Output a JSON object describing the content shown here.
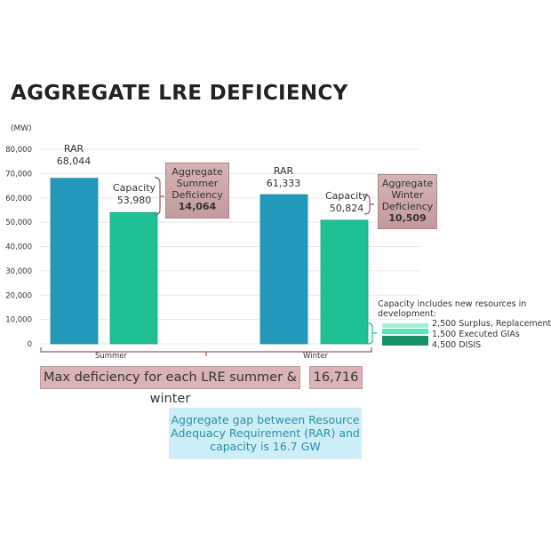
{
  "title": "AGGREGATE LRE DEFICIENCY",
  "chart_data": {
    "type": "bar",
    "ylabel": "(MW)",
    "ylim": [
      0,
      80000
    ],
    "yticks": [
      0,
      10000,
      20000,
      30000,
      40000,
      50000,
      60000,
      70000,
      80000
    ],
    "ytick_labels": [
      "0",
      "10,000",
      "20,000",
      "30,000",
      "40,000",
      "50,000",
      "60,000",
      "70,000",
      "80,000"
    ],
    "categories": [
      "Summer",
      "Winter"
    ],
    "series": [
      {
        "name": "RAR",
        "values": [
          68044,
          61333
        ],
        "labels": [
          "68,044",
          "61,333"
        ],
        "color": "#2299bb"
      },
      {
        "name": "Capacity",
        "values": [
          53980,
          50824
        ],
        "labels": [
          "53,980",
          "50,824"
        ],
        "color": "#1fc093"
      }
    ],
    "grid": true
  },
  "deficiency": {
    "summer": {
      "line1": "Aggregate",
      "line2": "Summer",
      "line3": "Deficiency",
      "value": "14,064"
    },
    "winter": {
      "line1": "Aggregate",
      "line2": "Winter",
      "line3": "Deficiency",
      "value": "10,509"
    }
  },
  "new_resources": {
    "heading1": "Capacity includes new resources in",
    "heading2": "development:",
    "items": [
      {
        "label": "2,500 Surplus, Replacement",
        "color": "#9eefd6"
      },
      {
        "label": "1,500 Executed GIAs",
        "color": "#5fe0bd"
      },
      {
        "label": "4,500 DISIS",
        "color": "#179068"
      }
    ]
  },
  "max_deficiency": {
    "label": "Max deficiency for each LRE summer & winter",
    "value": "16,716"
  },
  "gap_note": {
    "line1": "Aggregate gap between Resource",
    "line2": "Adequacy Requirement (RAR) and",
    "line3": "capacity is 16.7 GW"
  }
}
